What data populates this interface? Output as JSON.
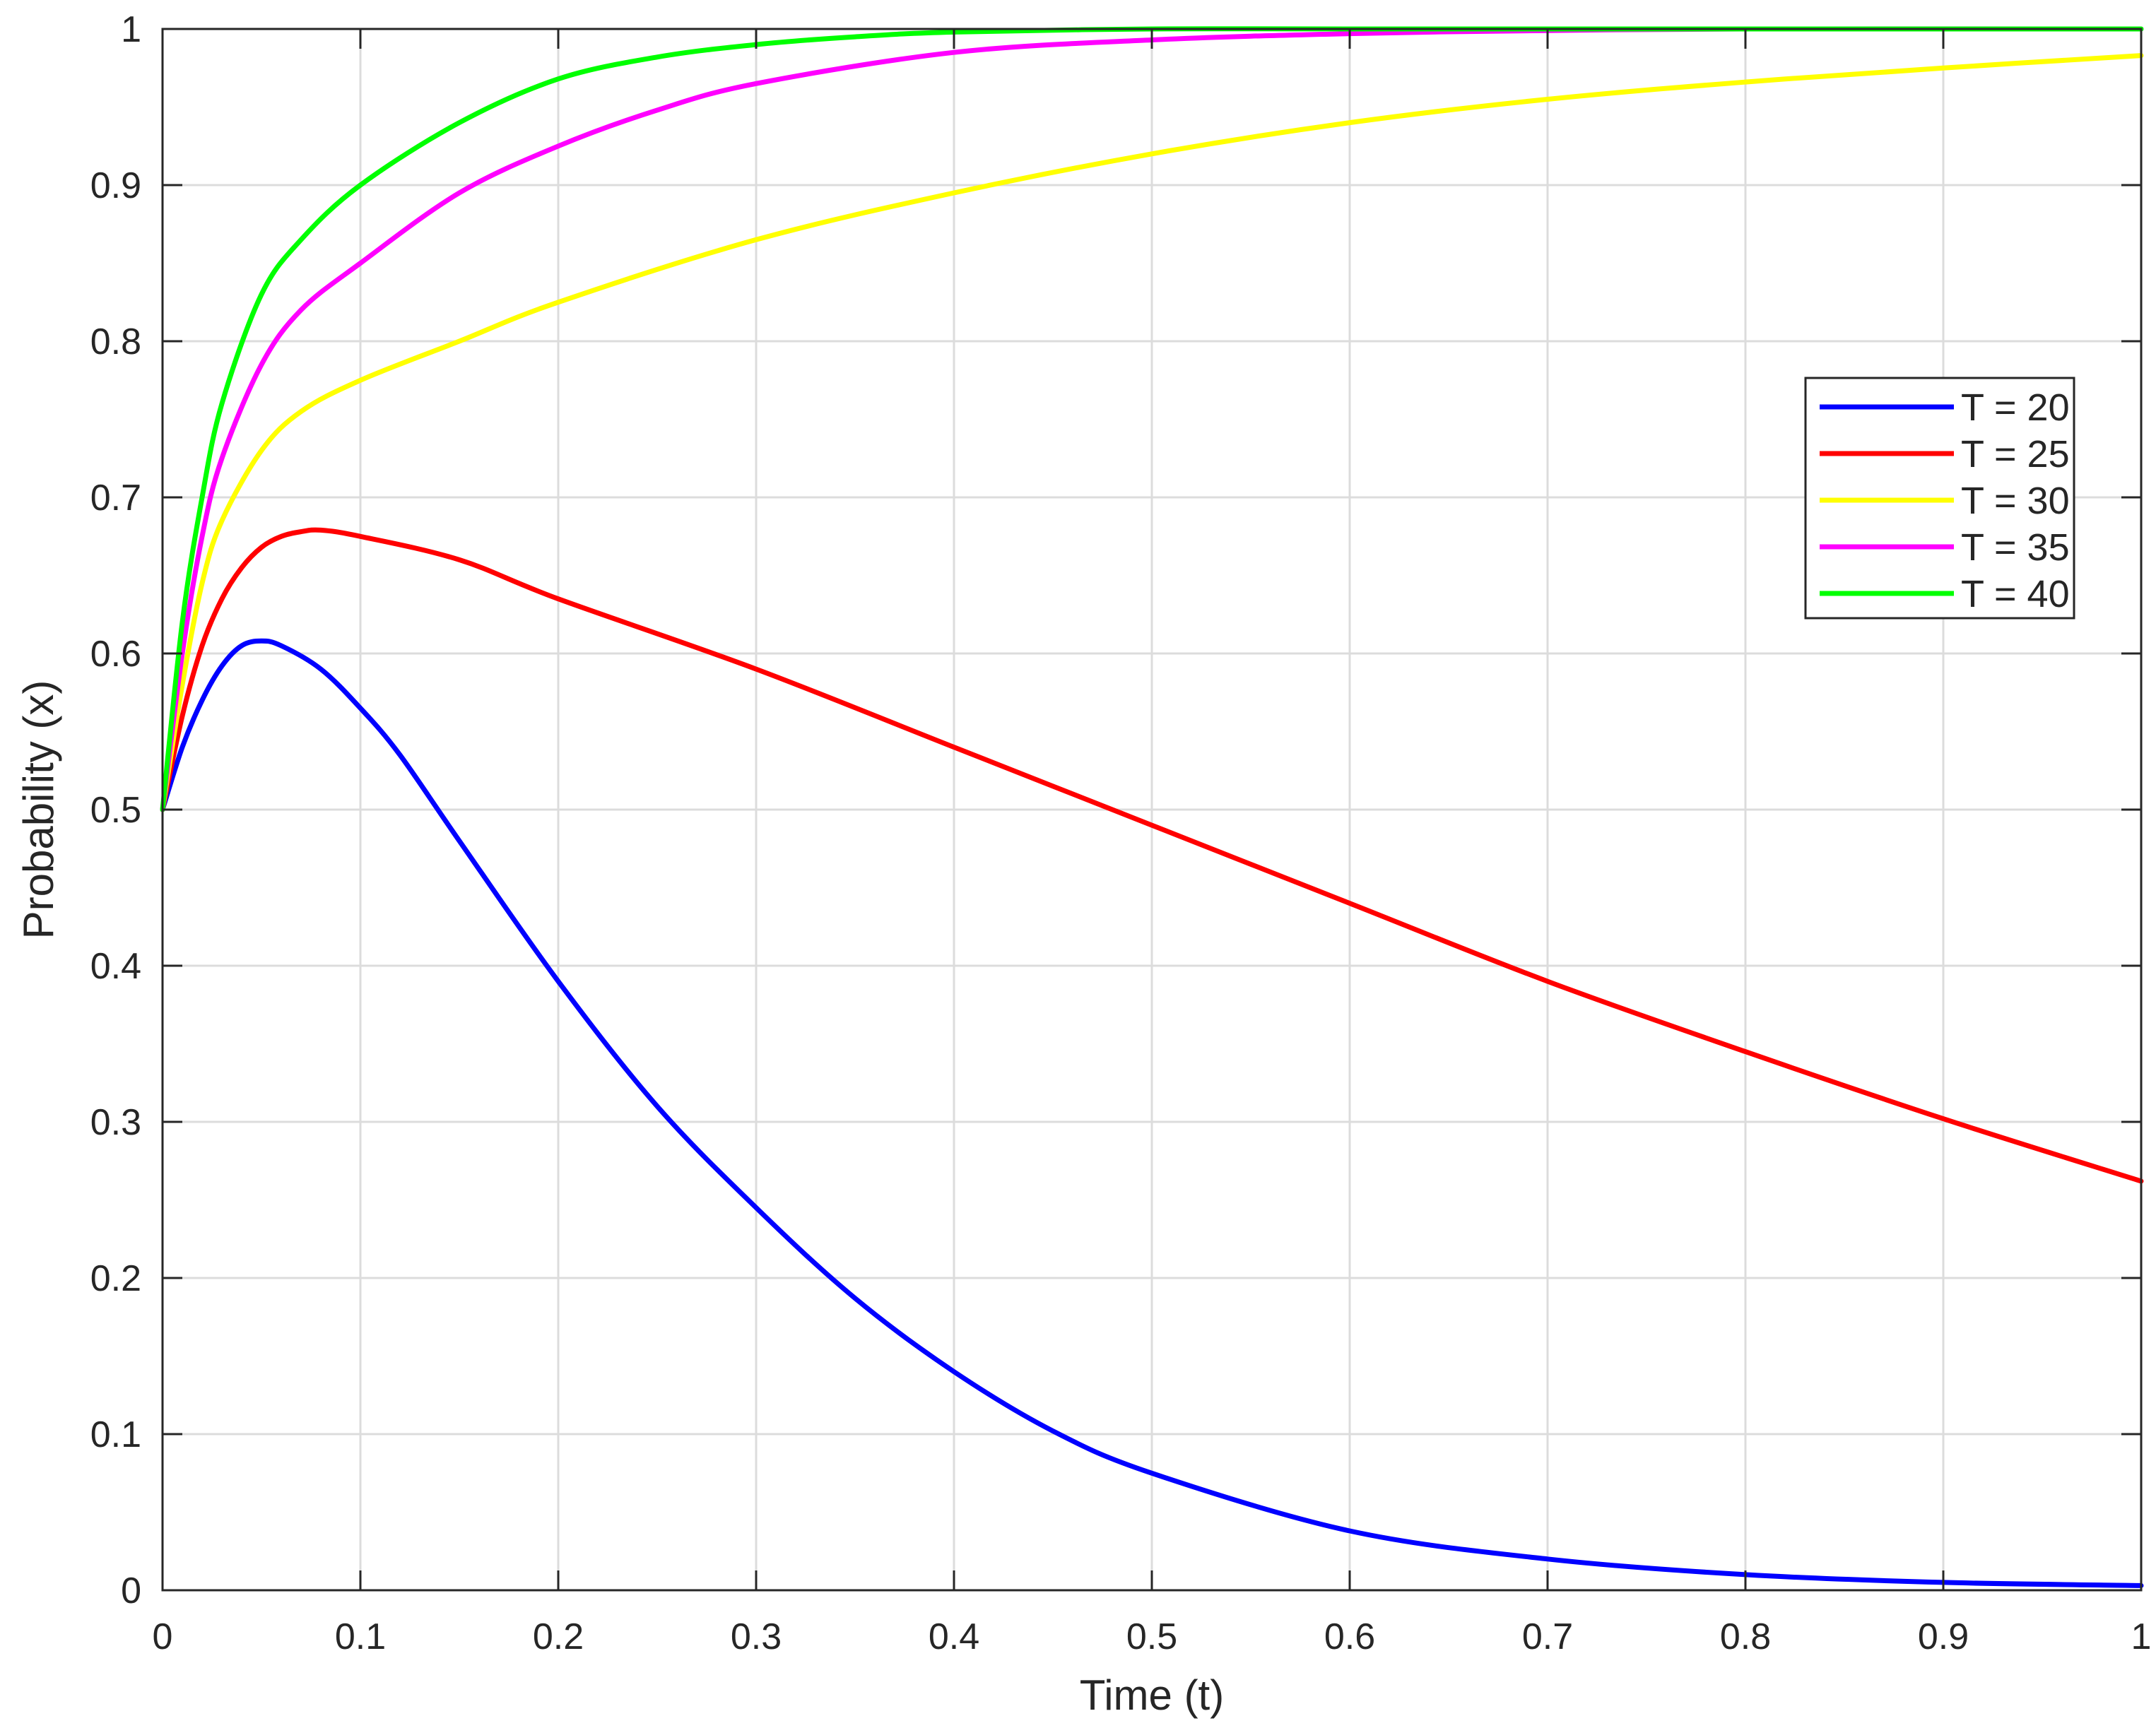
{
  "chart_data": {
    "type": "line",
    "title": "",
    "xlabel": "Time (t)",
    "ylabel": "Probability (x)",
    "xlim": [
      0,
      1
    ],
    "ylim": [
      0,
      1
    ],
    "xticks": [
      0,
      0.1,
      0.2,
      0.3,
      0.4,
      0.5,
      0.6,
      0.7,
      0.8,
      0.9,
      1
    ],
    "yticks": [
      0,
      0.1,
      0.2,
      0.3,
      0.4,
      0.5,
      0.6,
      0.7,
      0.8,
      0.9,
      1
    ],
    "xtick_labels": [
      "0",
      "0.1",
      "0.2",
      "0.3",
      "0.4",
      "0.5",
      "0.6",
      "0.7",
      "0.8",
      "0.9",
      "1"
    ],
    "ytick_labels": [
      "0",
      "0.1",
      "0.2",
      "0.3",
      "0.4",
      "0.5",
      "0.6",
      "0.7",
      "0.8",
      "0.9",
      "1"
    ],
    "grid": true,
    "legend_position": "right",
    "series": [
      {
        "name": "T = 20",
        "color": "#0000ff",
        "x": [
          0,
          0.01,
          0.02,
          0.03,
          0.04,
          0.05,
          0.06,
          0.08,
          0.1,
          0.12,
          0.15,
          0.2,
          0.25,
          0.3,
          0.35,
          0.4,
          0.45,
          0.5,
          0.6,
          0.7,
          0.8,
          0.9,
          1.0
        ],
        "y": [
          0.5,
          0.54,
          0.57,
          0.592,
          0.605,
          0.608,
          0.605,
          0.59,
          0.565,
          0.535,
          0.48,
          0.39,
          0.31,
          0.245,
          0.187,
          0.14,
          0.102,
          0.075,
          0.038,
          0.02,
          0.01,
          0.005,
          0.003
        ]
      },
      {
        "name": "T = 25",
        "color": "#ff0000",
        "x": [
          0,
          0.01,
          0.02,
          0.03,
          0.04,
          0.05,
          0.06,
          0.07,
          0.08,
          0.1,
          0.15,
          0.2,
          0.3,
          0.4,
          0.5,
          0.6,
          0.7,
          0.8,
          0.9,
          1.0
        ],
        "y": [
          0.5,
          0.56,
          0.605,
          0.635,
          0.655,
          0.668,
          0.675,
          0.678,
          0.679,
          0.675,
          0.66,
          0.635,
          0.59,
          0.54,
          0.49,
          0.44,
          0.39,
          0.345,
          0.302,
          0.262
        ]
      },
      {
        "name": "T = 30",
        "color": "#ffff00",
        "x": [
          0,
          0.01,
          0.02,
          0.03,
          0.05,
          0.07,
          0.1,
          0.15,
          0.2,
          0.3,
          0.4,
          0.5,
          0.6,
          0.7,
          0.8,
          0.9,
          1.0
        ],
        "y": [
          0.5,
          0.58,
          0.645,
          0.685,
          0.73,
          0.755,
          0.775,
          0.8,
          0.825,
          0.865,
          0.895,
          0.92,
          0.94,
          0.955,
          0.966,
          0.975,
          0.983
        ]
      },
      {
        "name": "T = 35",
        "color": "#ff00ff",
        "x": [
          0,
          0.01,
          0.02,
          0.03,
          0.05,
          0.07,
          0.1,
          0.15,
          0.2,
          0.25,
          0.3,
          0.4,
          0.5,
          0.6,
          0.7,
          0.8,
          1.0
        ],
        "y": [
          0.5,
          0.6,
          0.675,
          0.725,
          0.785,
          0.82,
          0.85,
          0.895,
          0.925,
          0.948,
          0.965,
          0.985,
          0.993,
          0.997,
          0.999,
          1.0,
          1.0
        ]
      },
      {
        "name": "T = 40",
        "color": "#00ff00",
        "x": [
          0,
          0.01,
          0.02,
          0.03,
          0.05,
          0.07,
          0.1,
          0.15,
          0.2,
          0.25,
          0.3,
          0.35,
          0.4,
          0.5,
          0.6,
          0.8,
          1.0
        ],
        "y": [
          0.5,
          0.62,
          0.7,
          0.76,
          0.83,
          0.865,
          0.9,
          0.94,
          0.968,
          0.982,
          0.99,
          0.995,
          0.998,
          1.0,
          1.0,
          1.0,
          1.0
        ]
      }
    ]
  }
}
